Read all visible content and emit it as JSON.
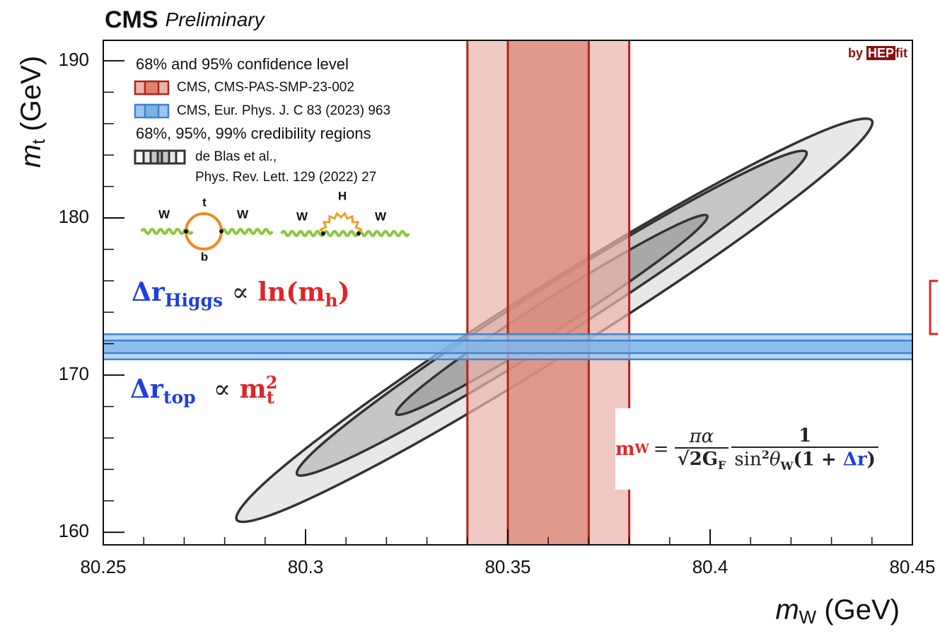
{
  "chart_data": {
    "type": "contour",
    "title": "CMS",
    "subtitle": "Preliminary",
    "xlabel": {
      "symbol": "m",
      "sub": "W",
      "unit": " (GeV)"
    },
    "ylabel": {
      "symbol": "m",
      "sub": "t",
      "unit": " (GeV)"
    },
    "xlim": [
      80.25,
      80.45
    ],
    "ylim": [
      159.2,
      191.3
    ],
    "xticks": [
      80.25,
      80.3,
      80.35,
      80.4,
      80.45
    ],
    "yticks": [
      160,
      170,
      180,
      190
    ],
    "xminorticks": [
      80.26,
      80.27,
      80.28,
      80.29,
      80.31,
      80.32,
      80.33,
      80.34,
      80.36,
      80.37,
      80.38,
      80.39,
      80.41,
      80.42,
      80.43,
      80.44
    ],
    "yminorticks": [
      162,
      164,
      166,
      168,
      172,
      174,
      176,
      178,
      182,
      184,
      186,
      188
    ],
    "legend_titles": [
      "68% and 95% confidence level",
      "68%, 95%, 99% credibility regions"
    ],
    "series": [
      {
        "name": "CMS, CMS-PAS-SMP-23-002",
        "color": "#b3241b",
        "fills": [
          "#e9b4ab",
          "#d98575"
        ],
        "orientation": "vertical",
        "bands": [
          [
            80.34,
            80.38
          ],
          [
            80.35,
            80.37
          ]
        ]
      },
      {
        "name": "CMS, Eur. Phys. J. C 83 (2023) 963",
        "color": "#3b84d4",
        "fills": [
          "#9cc6ef",
          "#7fb2e6"
        ],
        "orientation": "horizontal",
        "bands": [
          [
            171.0,
            172.6
          ],
          [
            171.4,
            172.2
          ]
        ]
      },
      {
        "name": "de Blas et al.,",
        "reference": "Phys. Rev. Lett. 129 (2022) 27",
        "color": "#333333",
        "contours": [
          {
            "fill": "#e8e8e8",
            "x": [
              80.44,
              80.4318,
              80.4047,
              80.3658,
              80.3262,
              80.2958,
              80.283,
              80.2912,
              80.3182,
              80.3568,
              80.3967,
              80.4271
            ],
            "y": [
              186.19,
              183.54,
              178.19,
              171.58,
              165.49,
              161.54,
              160.79,
              163.45,
              168.79,
              175.4,
              181.5,
              185.45
            ]
          },
          {
            "fill": "#c6c6c6",
            "x": [
              80.4238,
              80.417,
              80.3952,
              80.3642,
              80.3323,
              80.308,
              80.2979,
              80.3047,
              80.3265,
              80.3575,
              80.3894,
              80.4137
            ],
            "y": [
              184.19,
              182.13,
              177.88,
              172.57,
              167.63,
              164.38,
              163.69,
              165.75,
              170.01,
              175.32,
              180.25,
              183.5
            ]
          },
          {
            "fill": "#a8a8a8",
            "x": [
              80.3993,
              80.3952,
              80.3818,
              80.3629,
              80.3434,
              80.3286,
              80.3224,
              80.3265,
              80.3398,
              80.3588,
              80.3783,
              80.3931
            ],
            "y": [
              180.14,
              178.87,
              176.26,
              172.99,
              169.95,
              167.95,
              167.52,
              168.79,
              171.4,
              174.67,
              177.71,
              179.71
            ]
          }
        ]
      }
    ]
  },
  "logo": {
    "prefix": "by",
    "boxed": "HEP",
    "suffix": "fit"
  },
  "diagrams": [
    [
      "W",
      "t",
      "b",
      "W"
    ],
    [
      "W",
      "H",
      "W"
    ]
  ],
  "annotations": {
    "higgs": [
      "Δr",
      "Higgs",
      "∝",
      "ln(m",
      "h",
      ")"
    ],
    "top": [
      "Δr",
      "top",
      "∝",
      "m",
      "t",
      "2"
    ],
    "mw": [
      "m",
      "W",
      "=",
      "πα",
      "√2G",
      "F",
      "1",
      "sin",
      "2",
      "θ",
      "W",
      "(1 + ",
      "Δr",
      ")"
    ]
  }
}
